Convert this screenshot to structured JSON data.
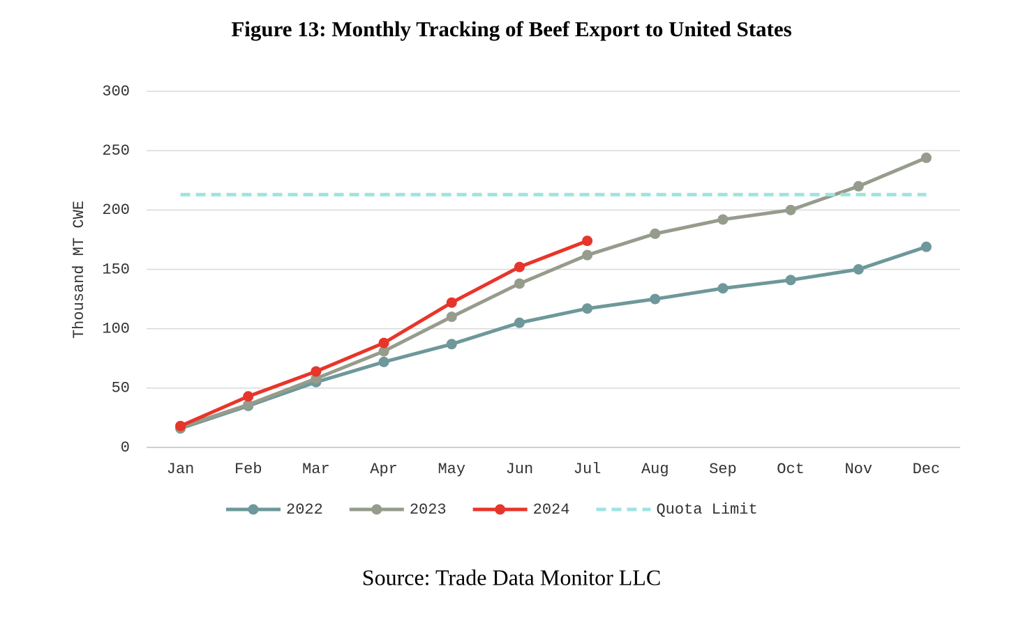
{
  "chart_data": {
    "type": "line",
    "title": "Figure 13: Monthly Tracking of Beef Export to United States",
    "y_label": "Thousand MT CWE",
    "source": "Source: Trade Data Monitor LLC",
    "categories": [
      "Jan",
      "Feb",
      "Mar",
      "Apr",
      "May",
      "Jun",
      "Jul",
      "Aug",
      "Sep",
      "Oct",
      "Nov",
      "Dec"
    ],
    "series": [
      {
        "name": "2022",
        "color": "#6e989b",
        "values": [
          16,
          35,
          55,
          72,
          87,
          105,
          117,
          125,
          134,
          141,
          150,
          169
        ]
      },
      {
        "name": "2023",
        "color": "#969c8c",
        "values": [
          17,
          36,
          58,
          81,
          110,
          138,
          162,
          180,
          192,
          200,
          220,
          244
        ]
      },
      {
        "name": "2024",
        "color": "#e8352a",
        "values": [
          18,
          43,
          64,
          88,
          122,
          152,
          174,
          null,
          null,
          null,
          null,
          null
        ]
      },
      {
        "name": "Quota Limit",
        "color": "#9fe3e0",
        "dashed": true,
        "values": [
          213,
          213,
          213,
          213,
          213,
          213,
          213,
          213,
          213,
          213,
          213,
          213
        ]
      }
    ],
    "ylim": [
      0,
      300
    ],
    "yticks": [
      0,
      50,
      100,
      150,
      200,
      250,
      300
    ],
    "grid": true
  }
}
